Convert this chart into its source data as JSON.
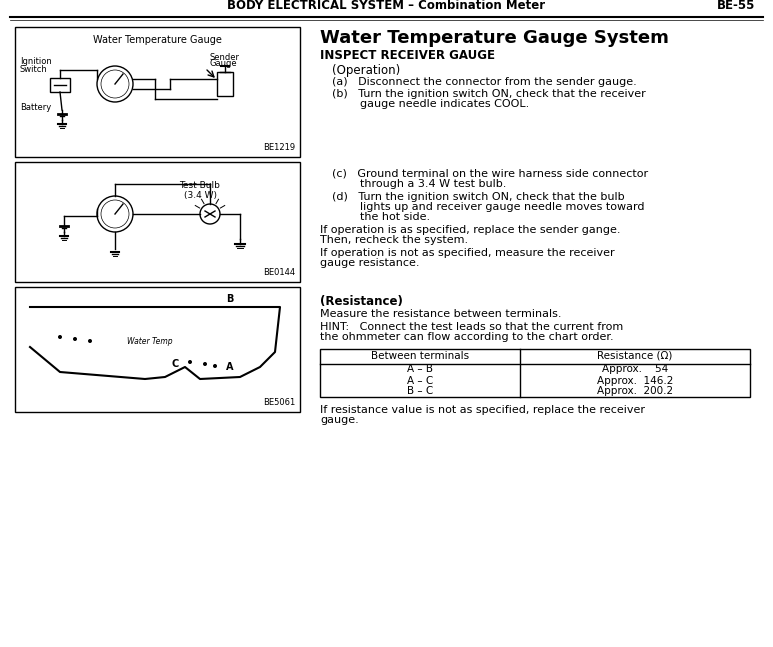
{
  "header_text": "BODY ELECTRICAL SYSTEM – Combination Meter",
  "header_right": "BE-55",
  "title": "Water Temperature Gauge System",
  "section_header": "INSPECT RECEIVER GAUGE",
  "sub_header1": "(Operation)",
  "item_a": "(a)   Disconnect the connector from the sender gauge.",
  "item_b_line1": "(b)   Turn the ignition switch ON, check that the receiver",
  "item_b_line2": "        gauge needle indicates COOL.",
  "item_c_line1": "(c)   Ground terminal on the wire harness side connector",
  "item_c_line2": "        through a 3.4 W test bulb.",
  "item_d_line1": "(d)   Turn the ignition switch ON, check that the bulb",
  "item_d_line2": "        lights up and receiver gauge needle moves toward",
  "item_d_line3": "        the hot side.",
  "para1_line1": "If operation is as specified, replace the sender gange.",
  "para1_line2": "Then, recheck the system.",
  "para2_line1": "If operation is not as specified, measure the receiver",
  "para2_line2": "gauge resistance.",
  "sub_header2": "(Resistance)",
  "resist_para": "Measure the resistance between terminals.",
  "hint_line1": "HINT:   Connect the test leads so that the current from",
  "hint_line2": "the ohmmeter can flow according to the chart order.",
  "table_col1": "Between terminals",
  "table_col2": "Resistance (Ω)",
  "table_rows": [
    [
      "A – B",
      "Approx.    54"
    ],
    [
      "A – C",
      "Approx.  146.2"
    ],
    [
      "B – C",
      "Approx.  200.2"
    ]
  ],
  "final_line1": "If resistance value is not as specified, replace the receiver",
  "final_line2": "gauge.",
  "diagram1_label": "Water Temperature Gauge",
  "diagram1_sub1": "Ignition",
  "diagram1_sub2": "Switch",
  "diagram1_sub3": "Battery",
  "diagram1_sub4": "Sender",
  "diagram1_sub5": "Gauge",
  "diagram1_code": "BE1219",
  "diagram2_label": "Test Bulb\n(3.4 W)",
  "diagram2_code": "BE0144",
  "diagram3_code": "BE5061",
  "bg_color": "#ffffff",
  "text_color": "#000000",
  "header_bg": "#ffffff",
  "box_color": "#000000",
  "table_border": "#000000"
}
